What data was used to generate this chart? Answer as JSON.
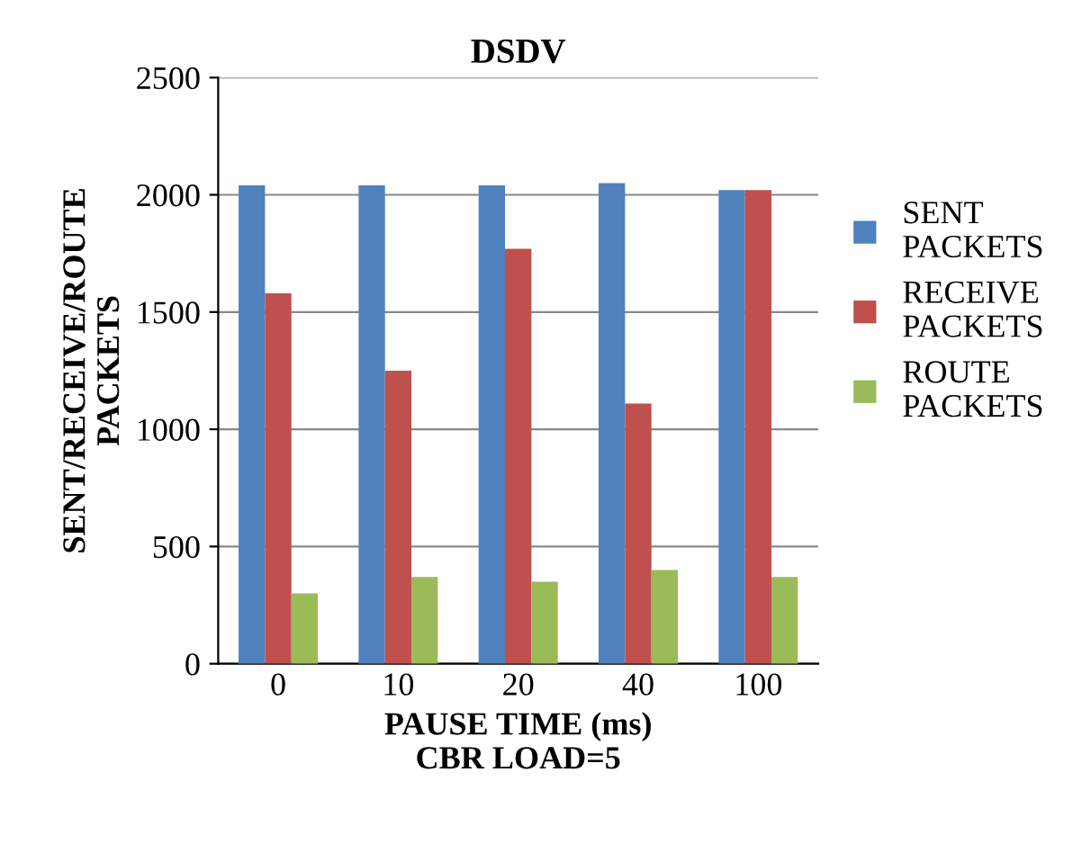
{
  "chart_data": {
    "type": "bar",
    "title": "DSDV",
    "xlabel": "PAUSE TIME (ms)\nCBR LOAD=5",
    "ylabel": "SENT/RECEIVE/ROUTE\nPACKETS",
    "categories": [
      "0",
      "10",
      "20",
      "40",
      "100"
    ],
    "series": [
      {
        "name": "SENT\nPACKETS",
        "color": "#4f81bd",
        "values": [
          2040,
          2040,
          2040,
          2050,
          2020
        ]
      },
      {
        "name": "RECEIVE\nPACKETS",
        "color": "#c0504d",
        "values": [
          1580,
          1250,
          1770,
          1110,
          2020
        ]
      },
      {
        "name": "ROUTE\nPACKETS",
        "color": "#9bbb59",
        "values": [
          300,
          370,
          350,
          400,
          370
        ]
      }
    ],
    "ylim": [
      0,
      2500
    ],
    "yticks": [
      0,
      500,
      1000,
      1500,
      2000,
      2500
    ],
    "grid": "y",
    "legend": "right"
  }
}
